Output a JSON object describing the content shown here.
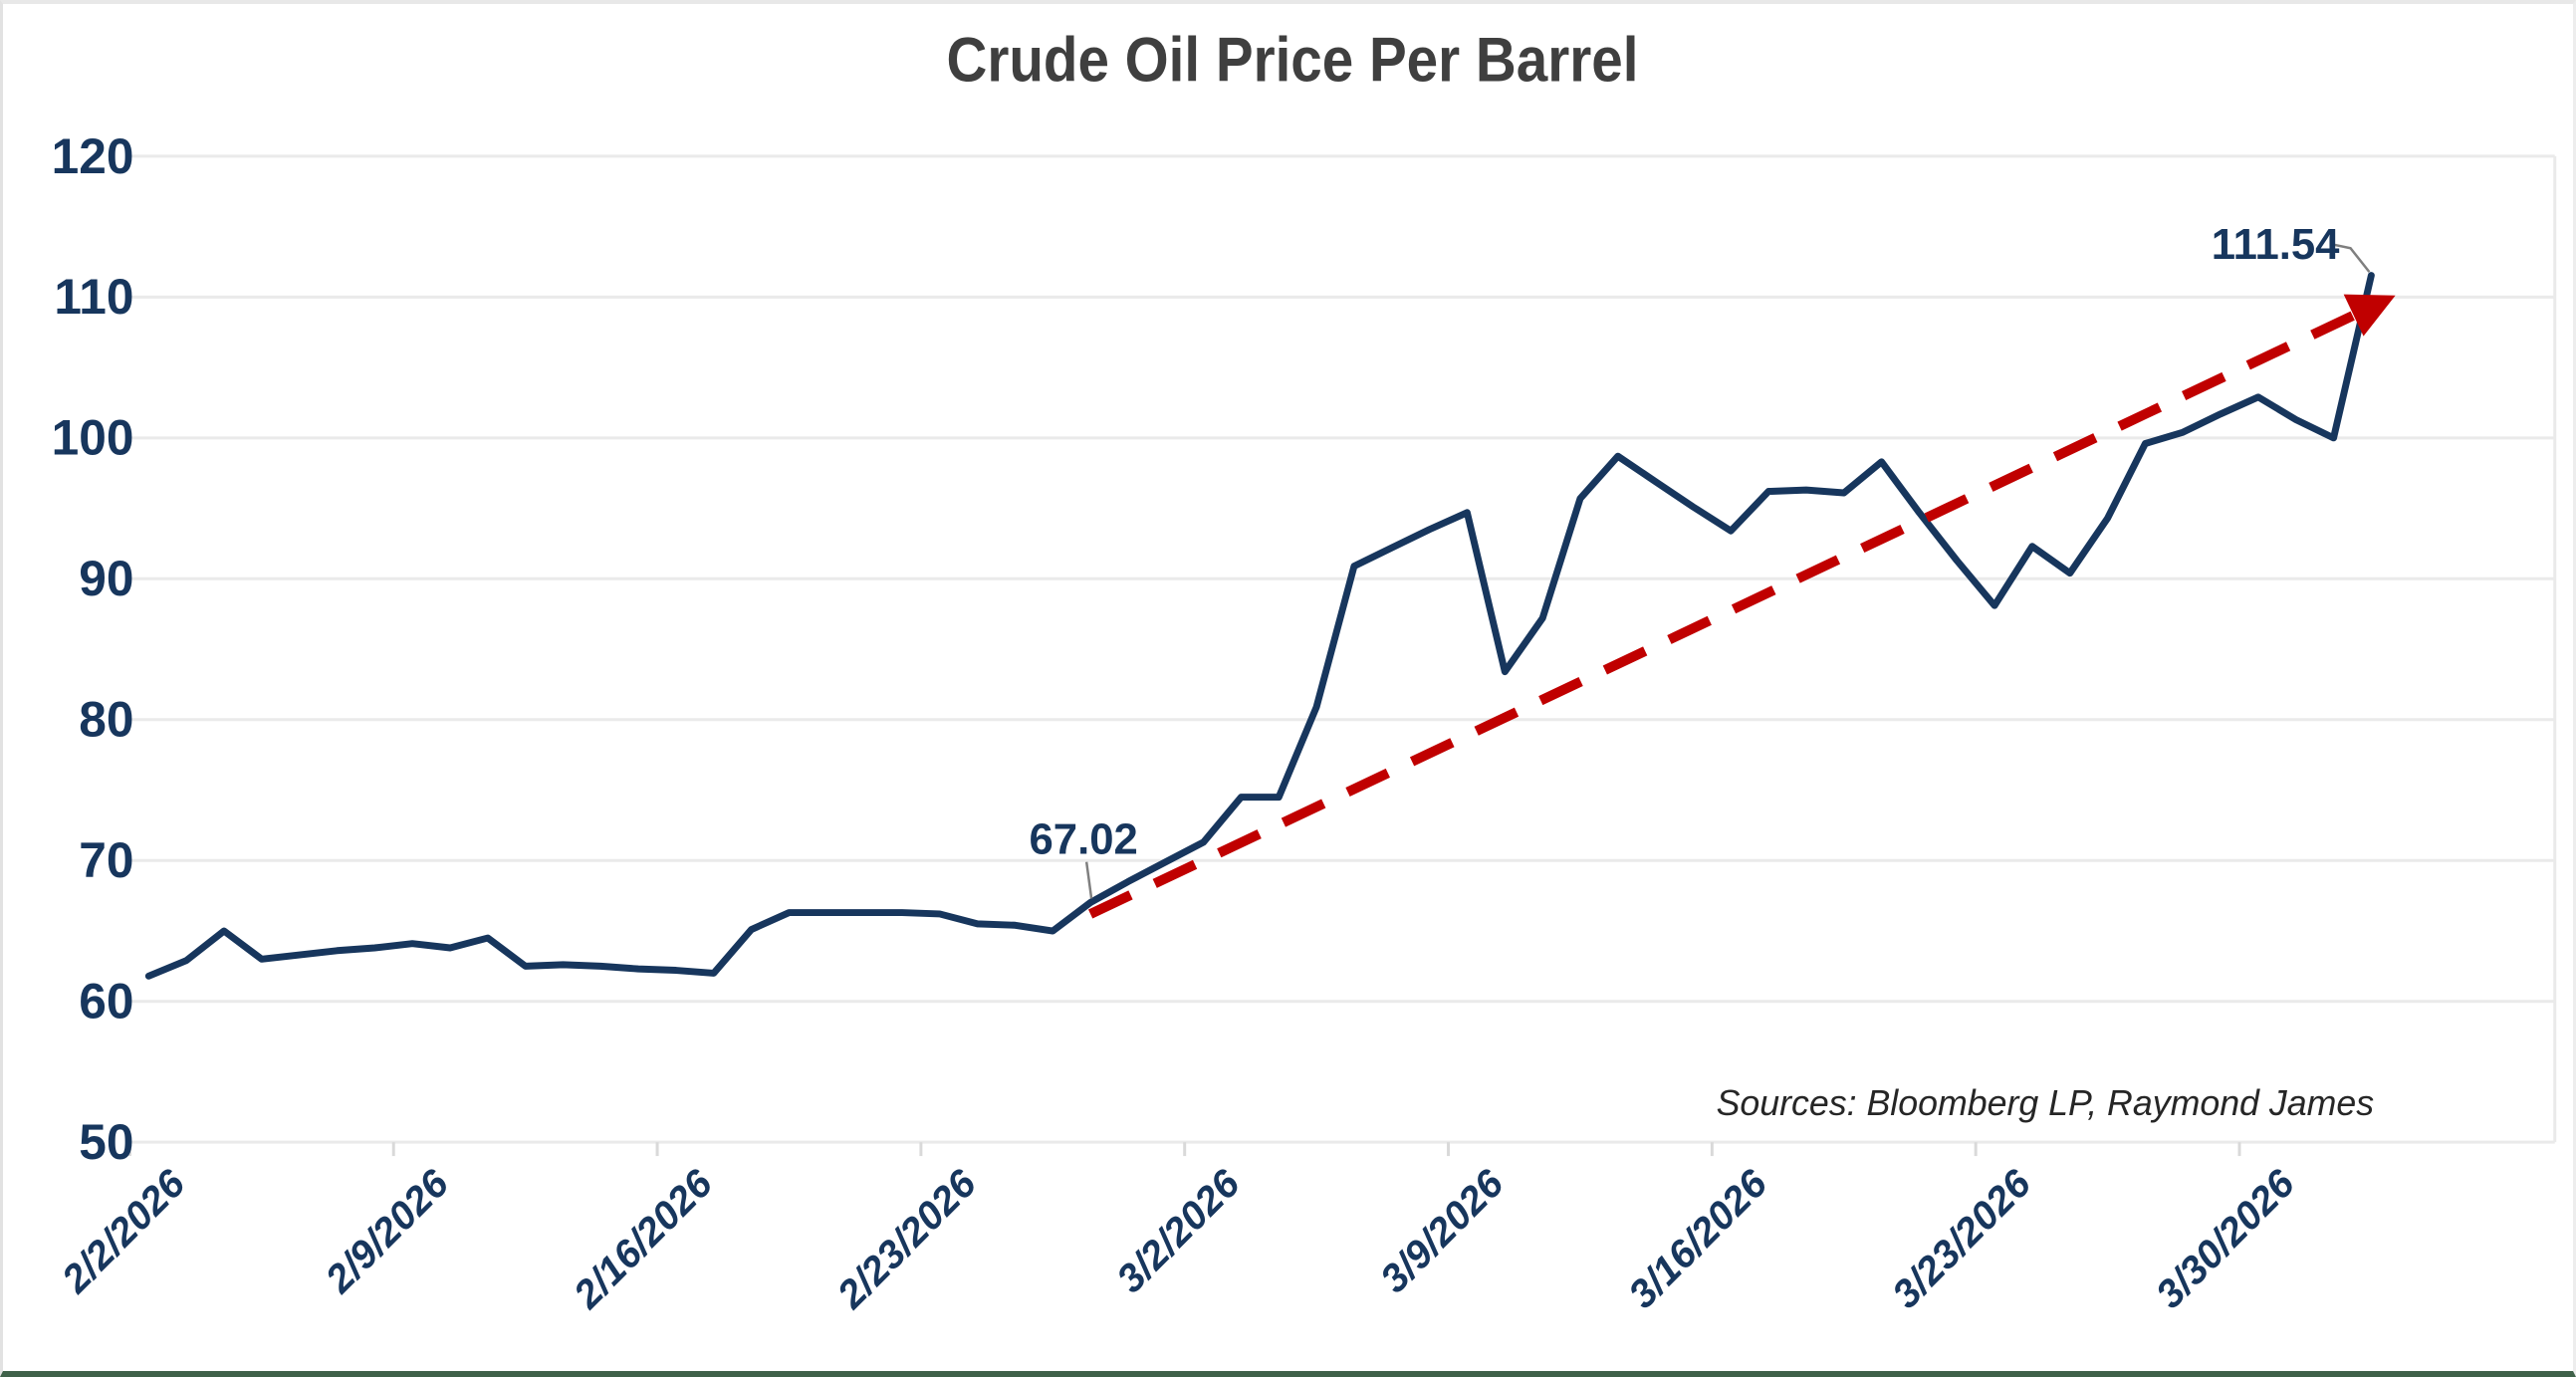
{
  "page": {
    "title": "Crude Oil Price Per Barrel",
    "source_note": "Sources: Bloomberg LP, Raymond James"
  },
  "chart_data": {
    "type": "line",
    "title": "Crude Oil Price Per Barrel",
    "ylim": [
      50,
      120
    ],
    "y_ticks": [
      120,
      110,
      100,
      90,
      80,
      70,
      60,
      50
    ],
    "grid": "horizontal",
    "legend": "none",
    "x_tick_labels": [
      "2/2/2026",
      "2/9/2026",
      "2/16/2026",
      "2/23/2026",
      "3/2/2026",
      "3/9/2026",
      "3/16/2026",
      "3/23/2026",
      "3/30/2026"
    ],
    "x": [
      "2/2/2026",
      "2/3/2026",
      "2/4/2026",
      "2/5/2026",
      "2/6/2026",
      "2/7/2026",
      "2/8/2026",
      "2/9/2026",
      "2/10/2026",
      "2/11/2026",
      "2/12/2026",
      "2/13/2026",
      "2/14/2026",
      "2/15/2026",
      "2/16/2026",
      "2/17/2026",
      "2/18/2026",
      "2/19/2026",
      "2/20/2026",
      "2/21/2026",
      "2/22/2026",
      "2/23/2026",
      "2/24/2026",
      "2/25/2026",
      "2/26/2026",
      "2/27/2026",
      "2/28/2026",
      "3/1/2026",
      "3/2/2026",
      "3/3/2026",
      "3/4/2026",
      "3/5/2026",
      "3/6/2026",
      "3/7/2026",
      "3/8/2026",
      "3/9/2026",
      "3/10/2026",
      "3/11/2026",
      "3/12/2026",
      "3/13/2026",
      "3/14/2026",
      "3/15/2026",
      "3/16/2026",
      "3/17/2026",
      "3/18/2026",
      "3/19/2026",
      "3/20/2026",
      "3/21/2026",
      "3/22/2026",
      "3/23/2026",
      "3/24/2026",
      "3/25/2026",
      "3/26/2026",
      "3/27/2026",
      "3/28/2026",
      "3/29/2026",
      "3/30/2026",
      "3/31/2026",
      "4/1/2026",
      "4/2/2026"
    ],
    "series": [
      {
        "name": "Crude Oil Price Per Barrel",
        "color": "#17365d",
        "values": [
          61.8,
          62.9,
          65.0,
          63.0,
          63.3,
          63.6,
          63.8,
          64.1,
          63.8,
          64.5,
          62.5,
          62.6,
          62.5,
          62.3,
          62.2,
          62.0,
          65.1,
          66.3,
          66.3,
          66.3,
          66.3,
          66.2,
          65.5,
          65.4,
          65.0,
          67.02,
          68.5,
          69.9,
          71.3,
          74.5,
          74.5,
          80.9,
          90.9,
          92.2,
          93.5,
          94.7,
          83.4,
          87.2,
          95.7,
          98.7,
          96.9,
          95.1,
          93.4,
          96.2,
          96.3,
          96.1,
          98.3,
          94.7,
          91.3,
          88.1,
          92.3,
          90.4,
          94.3,
          99.6,
          100.4,
          101.7,
          102.9,
          101.3,
          100.0,
          111.54
        ]
      }
    ],
    "trendline": {
      "style": "dashed",
      "color": "#c00000",
      "arrow_end": true,
      "start": {
        "date": "2/27/2026",
        "value": 66.2
      },
      "end": {
        "date": "4/2/2026",
        "value": 109.8
      }
    },
    "annotations": [
      {
        "label": "67.02",
        "date": "2/27/2026",
        "value": 67.02
      },
      {
        "label": "111.54",
        "date": "4/2/2026",
        "value": 111.54
      }
    ],
    "colors": {
      "series_line": "#17365d",
      "trend_line": "#c00000",
      "axis_labels": "#17365d",
      "gridline": "#eaeaea",
      "tick": "#d9d9d9",
      "title_text": "#3f3f3f",
      "source_text": "#262626",
      "callout": "#7f7f7f"
    }
  }
}
